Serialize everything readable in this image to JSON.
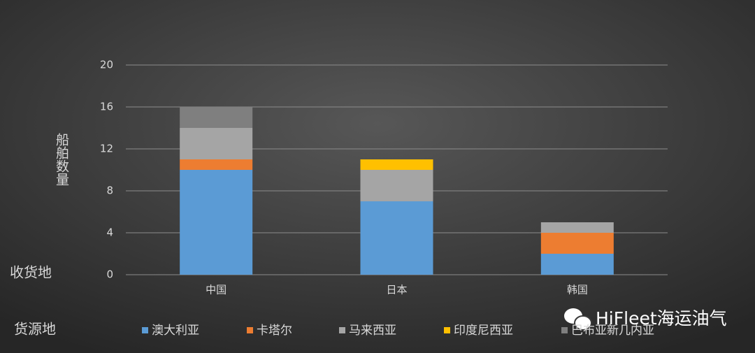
{
  "chart_data": {
    "type": "stacked_bar",
    "y_label": "船舶数量",
    "x_label": "收货地",
    "legend_title": "货源地",
    "watermark": "HiFleet海运油气",
    "categories": [
      "中国",
      "日本",
      "韩国"
    ],
    "series": [
      {
        "name": "澳大利亚",
        "color": "#5b9bd5",
        "values": [
          10,
          7,
          2
        ]
      },
      {
        "name": "卡塔尔",
        "color": "#ed7d31",
        "values": [
          1,
          0,
          2
        ]
      },
      {
        "name": "马来西亚",
        "color": "#a5a5a5",
        "values": [
          3,
          3,
          1
        ]
      },
      {
        "name": "印度尼西亚",
        "color": "#ffc000",
        "values": [
          0,
          1,
          0
        ]
      },
      {
        "name": "巴布亚新几内亚",
        "color": "#7f7f7f",
        "values": [
          2,
          0,
          0
        ]
      }
    ],
    "ylim": [
      0,
      20
    ],
    "yticks": [
      0,
      4,
      8,
      12,
      16,
      20
    ],
    "grid": true,
    "legend": "bottom"
  }
}
